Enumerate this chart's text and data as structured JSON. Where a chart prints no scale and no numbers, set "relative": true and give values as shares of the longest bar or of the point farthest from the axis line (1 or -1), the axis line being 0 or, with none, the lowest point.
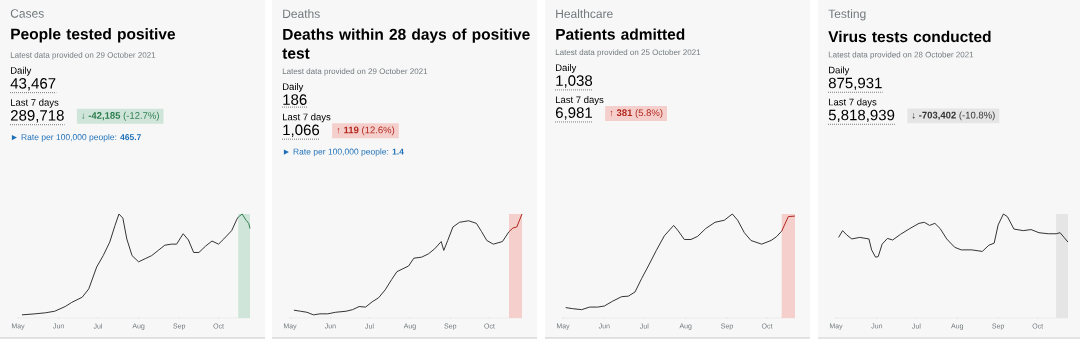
{
  "chart_data": [
    {
      "type": "line",
      "subtitle": "Cases",
      "title": "People tested positive",
      "relative": true,
      "annotations": [
        "Latest data provided on 29 October 2021",
        "Daily",
        "43,467",
        "Last 7 days",
        "289,718",
        "↓ **-42,185** (-12.7%)",
        "► Rate per 100,000 people: **465.7**"
      ],
      "xlim": [
        "2021-05-01",
        "2021-10-25"
      ],
      "xticks": [
        {
          "value": "2021-05-01",
          "label": "May"
        },
        {
          "value": "2021-06-01",
          "label": "Jun"
        },
        {
          "value": "2021-07-01",
          "label": "Jul"
        },
        {
          "value": "2021-08-01",
          "label": "Aug"
        },
        {
          "value": "2021-09-01",
          "label": "Sep"
        },
        {
          "value": "2021-10-01",
          "label": "Oct"
        }
      ],
      "bands": [
        {
          "axis": "x",
          "from": "2021-10-16",
          "to": "2021-10-25",
          "color": "#cfe5d9"
        }
      ],
      "series": [
        {
          "color": "#333333",
          "x": [
            "2021-05-04",
            "2021-05-14",
            "2021-05-22",
            "2021-05-29",
            "2021-06-06",
            "2021-06-11",
            "2021-06-19",
            "2021-06-24",
            "2021-06-30",
            "2021-07-05",
            "2021-07-10",
            "2021-07-14",
            "2021-07-17",
            "2021-07-20",
            "2021-07-23",
            "2021-07-27",
            "2021-08-01",
            "2021-08-06",
            "2021-08-11",
            "2021-08-16",
            "2021-08-21",
            "2021-08-26",
            "2021-08-30",
            "2021-09-04",
            "2021-09-08",
            "2021-09-12",
            "2021-09-16",
            "2021-09-21",
            "2021-09-26",
            "2021-10-01",
            "2021-10-05",
            "2021-10-11",
            "2021-10-15",
            "2021-10-16"
          ],
          "values": [
            0.03,
            0.04,
            0.05,
            0.065,
            0.11,
            0.15,
            0.2,
            0.28,
            0.49,
            0.6,
            0.73,
            0.89,
            1.0,
            0.96,
            0.76,
            0.6,
            0.54,
            0.57,
            0.6,
            0.65,
            0.7,
            0.71,
            0.71,
            0.81,
            0.75,
            0.63,
            0.63,
            0.69,
            0.74,
            0.71,
            0.76,
            0.84,
            0.95,
            0.97
          ]
        },
        {
          "color": "#2e7d4f",
          "x": [
            "2021-10-16",
            "2021-10-19",
            "2021-10-22",
            "2021-10-24",
            "2021-10-25"
          ],
          "values": [
            0.97,
            1.0,
            0.94,
            0.91,
            0.86
          ]
        }
      ]
    },
    {
      "type": "line",
      "subtitle": "Deaths",
      "title": "Deaths within 28 days of positive test",
      "relative": true,
      "annotations": [
        "Latest data provided on 29 October 2021",
        "Daily",
        "186",
        "Last 7 days",
        "1,066",
        "↑ **119** (12.6%)",
        "► Rate per 100,000 people: **1.4**"
      ],
      "xlim": [
        "2021-05-01",
        "2021-10-26"
      ],
      "xticks": [
        {
          "value": "2021-05-01",
          "label": "May"
        },
        {
          "value": "2021-06-01",
          "label": "Jun"
        },
        {
          "value": "2021-07-01",
          "label": "Jul"
        },
        {
          "value": "2021-08-01",
          "label": "Aug"
        },
        {
          "value": "2021-09-01",
          "label": "Sep"
        },
        {
          "value": "2021-10-01",
          "label": "Oct"
        }
      ],
      "bands": [
        {
          "axis": "x",
          "from": "2021-10-16",
          "to": "2021-10-26",
          "color": "#f5cfcb"
        }
      ],
      "series": [
        {
          "color": "#333333",
          "x": [
            "2021-05-04",
            "2021-05-09",
            "2021-05-14",
            "2021-05-19",
            "2021-05-24",
            "2021-05-30",
            "2021-06-05",
            "2021-06-13",
            "2021-06-18",
            "2021-06-23",
            "2021-06-28",
            "2021-07-03",
            "2021-07-08",
            "2021-07-13",
            "2021-07-18",
            "2021-07-22",
            "2021-07-26",
            "2021-07-31",
            "2021-08-04",
            "2021-08-10",
            "2021-08-15",
            "2021-08-20",
            "2021-08-25",
            "2021-08-27",
            "2021-08-30",
            "2021-09-03",
            "2021-09-08",
            "2021-09-15",
            "2021-09-21",
            "2021-09-25",
            "2021-09-29",
            "2021-10-04",
            "2021-10-11",
            "2021-10-16"
          ],
          "values": [
            0.075,
            0.065,
            0.055,
            0.03,
            0.04,
            0.04,
            0.055,
            0.065,
            0.08,
            0.11,
            0.105,
            0.155,
            0.195,
            0.27,
            0.37,
            0.445,
            0.47,
            0.5,
            0.575,
            0.585,
            0.615,
            0.665,
            0.735,
            0.65,
            0.745,
            0.875,
            0.92,
            0.935,
            0.91,
            0.83,
            0.745,
            0.71,
            0.735,
            0.83
          ]
        },
        {
          "color": "#b3261e",
          "x": [
            "2021-10-16",
            "2021-10-19",
            "2021-10-22",
            "2021-10-26"
          ],
          "values": [
            0.83,
            0.865,
            0.875,
            1.0
          ]
        }
      ]
    },
    {
      "type": "line",
      "subtitle": "Healthcare",
      "title": "Patients admitted",
      "relative": true,
      "annotations": [
        "Latest data provided on 25 October 2021",
        "Daily",
        "1,038",
        "Last 7 days",
        "6,981",
        "↑ **381** (5.8%)"
      ],
      "xlim": [
        "2021-05-01",
        "2021-10-22"
      ],
      "xticks": [
        {
          "value": "2021-05-01",
          "label": "May"
        },
        {
          "value": "2021-06-01",
          "label": "Jun"
        },
        {
          "value": "2021-07-01",
          "label": "Jul"
        },
        {
          "value": "2021-08-01",
          "label": "Aug"
        },
        {
          "value": "2021-09-01",
          "label": "Sep"
        },
        {
          "value": "2021-10-01",
          "label": "Oct"
        }
      ],
      "bands": [
        {
          "axis": "x",
          "from": "2021-10-12",
          "to": "2021-10-22",
          "color": "#f5cfcb"
        }
      ],
      "series": [
        {
          "color": "#333333",
          "x": [
            "2021-05-03",
            "2021-05-08",
            "2021-05-15",
            "2021-05-21",
            "2021-05-27",
            "2021-06-01",
            "2021-06-07",
            "2021-06-14",
            "2021-06-19",
            "2021-06-24",
            "2021-06-29",
            "2021-07-04",
            "2021-07-10",
            "2021-07-16",
            "2021-07-23",
            "2021-07-26",
            "2021-07-31",
            "2021-08-05",
            "2021-08-10",
            "2021-08-16",
            "2021-08-23",
            "2021-08-30",
            "2021-09-05",
            "2021-09-09",
            "2021-09-14",
            "2021-09-19",
            "2021-09-27",
            "2021-10-04",
            "2021-10-08",
            "2021-10-12"
          ],
          "values": [
            0.1,
            0.09,
            0.08,
            0.105,
            0.105,
            0.115,
            0.16,
            0.205,
            0.21,
            0.25,
            0.38,
            0.5,
            0.65,
            0.79,
            0.89,
            0.845,
            0.755,
            0.755,
            0.785,
            0.86,
            0.92,
            0.94,
            1.0,
            0.94,
            0.82,
            0.745,
            0.71,
            0.745,
            0.78,
            0.835
          ]
        },
        {
          "color": "#b3261e",
          "x": [
            "2021-10-12",
            "2021-10-17",
            "2021-10-22"
          ],
          "values": [
            0.835,
            0.975,
            0.98
          ]
        }
      ]
    },
    {
      "type": "line",
      "subtitle": "Testing",
      "title": "Virus tests conducted",
      "relative": true,
      "annotations": [
        "Latest data provided on 28 October 2021",
        "Daily",
        "875,931",
        "Last 7 days",
        "5,818,939",
        "↓ **-703,402** (-10.8%)"
      ],
      "xlim": [
        "2021-05-01",
        "2021-10-24"
      ],
      "xticks": [
        {
          "value": "2021-05-01",
          "label": "May"
        },
        {
          "value": "2021-06-01",
          "label": "Jun"
        },
        {
          "value": "2021-07-01",
          "label": "Jul"
        },
        {
          "value": "2021-08-01",
          "label": "Aug"
        },
        {
          "value": "2021-09-01",
          "label": "Sep"
        },
        {
          "value": "2021-10-01",
          "label": "Oct"
        }
      ],
      "bands": [
        {
          "axis": "x",
          "from": "2021-10-15",
          "to": "2021-10-24",
          "color": "#e5e5e5"
        }
      ],
      "series": [
        {
          "color": "#333333",
          "x": [
            "2021-05-03",
            "2021-05-06",
            "2021-05-09",
            "2021-05-13",
            "2021-05-19",
            "2021-05-26",
            "2021-05-28",
            "2021-05-31",
            "2021-06-02",
            "2021-06-05",
            "2021-06-09",
            "2021-06-13",
            "2021-06-19",
            "2021-06-26",
            "2021-07-03",
            "2021-07-07",
            "2021-07-11",
            "2021-07-15",
            "2021-07-19",
            "2021-07-24",
            "2021-07-30",
            "2021-08-04",
            "2021-08-12",
            "2021-08-20",
            "2021-08-25",
            "2021-08-29",
            "2021-09-01",
            "2021-09-05",
            "2021-09-08",
            "2021-09-13",
            "2021-09-20",
            "2021-09-26",
            "2021-10-02",
            "2021-10-09",
            "2021-10-15",
            "2021-10-18",
            "2021-10-21",
            "2021-10-24"
          ],
          "values": [
            0.775,
            0.84,
            0.8,
            0.76,
            0.775,
            0.76,
            0.655,
            0.585,
            0.59,
            0.71,
            0.765,
            0.75,
            0.805,
            0.86,
            0.91,
            0.92,
            0.89,
            0.91,
            0.86,
            0.76,
            0.68,
            0.655,
            0.655,
            0.64,
            0.7,
            0.72,
            0.895,
            1.0,
            0.975,
            0.855,
            0.84,
            0.85,
            0.82,
            0.81,
            0.81,
            0.82,
            0.775,
            0.73
          ]
        }
      ]
    }
  ]
}
